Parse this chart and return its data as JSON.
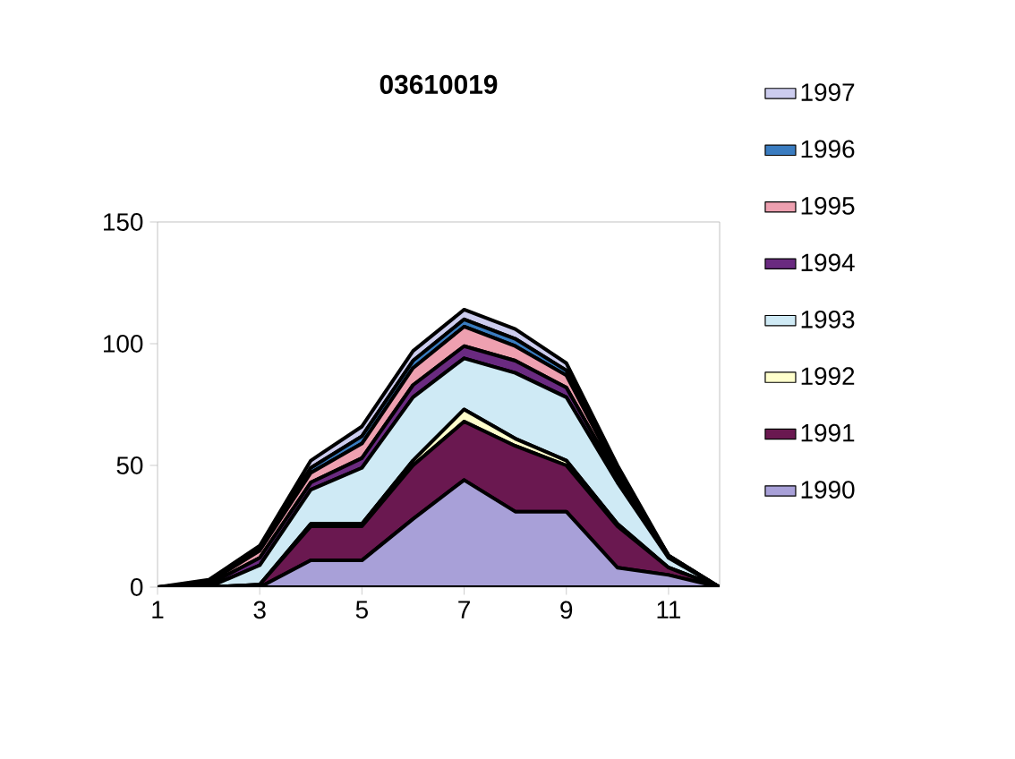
{
  "chart_data": {
    "type": "area",
    "stacked": true,
    "title": "03610019",
    "x": [
      1,
      2,
      3,
      4,
      5,
      6,
      7,
      8,
      9,
      10,
      11,
      12
    ],
    "xlim": [
      1,
      12
    ],
    "xticks": [
      1,
      3,
      5,
      7,
      9,
      11
    ],
    "ylim": [
      0,
      150
    ],
    "yticks": [
      0,
      50,
      100,
      150
    ],
    "grid": false,
    "legend": "right",
    "series": [
      {
        "name": "1990",
        "color": "#a8a0d8",
        "values": [
          0,
          0,
          0,
          11,
          11,
          28,
          44,
          31,
          31,
          8,
          5,
          0
        ]
      },
      {
        "name": "1991",
        "color": "#6a1850",
        "values": [
          0,
          0,
          1,
          14,
          14,
          22,
          24,
          27,
          19,
          17,
          3,
          0
        ]
      },
      {
        "name": "1992",
        "color": "#ffffcc",
        "values": [
          0,
          0,
          0,
          1,
          1,
          2,
          5,
          3,
          2,
          1,
          0,
          0
        ]
      },
      {
        "name": "1993",
        "color": "#cfeaf5",
        "values": [
          0,
          0,
          8,
          14,
          23,
          26,
          21,
          27,
          26,
          17,
          4,
          0
        ]
      },
      {
        "name": "1994",
        "color": "#6a2a80",
        "values": [
          0,
          1,
          3,
          3,
          4,
          5,
          5,
          5,
          4,
          2,
          0,
          0
        ]
      },
      {
        "name": "1995",
        "color": "#eea0b0",
        "values": [
          0,
          1,
          3,
          4,
          6,
          7,
          8,
          6,
          5,
          2,
          1,
          0
        ]
      },
      {
        "name": "1996",
        "color": "#3a7cc0",
        "values": [
          0,
          0,
          1,
          2,
          3,
          3,
          3,
          3,
          2,
          1,
          0,
          0
        ]
      },
      {
        "name": "1997",
        "color": "#ccccee",
        "values": [
          0,
          1,
          1,
          3,
          4,
          4,
          4,
          4,
          3,
          2,
          0,
          0
        ]
      }
    ]
  }
}
